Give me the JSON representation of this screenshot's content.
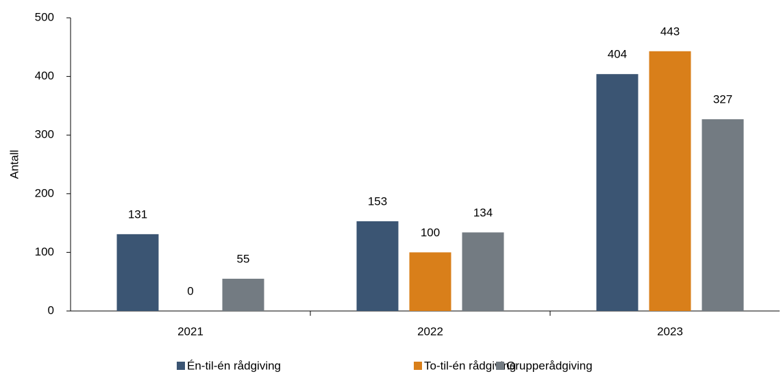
{
  "chart_data": {
    "type": "bar",
    "y_label": "Antall",
    "categories": [
      "2021",
      "2022",
      "2023"
    ],
    "series": [
      {
        "name": "Én-til-én rådgiving",
        "color": "#3b5573",
        "values": [
          131,
          153,
          404
        ]
      },
      {
        "name": "To-til-én rådgiving",
        "color": "#d97f1a",
        "values": [
          0,
          100,
          443
        ]
      },
      {
        "name": "Grupperådgiving",
        "color": "#737b82",
        "values": [
          55,
          134,
          327
        ]
      }
    ],
    "ylim": [
      0,
      500
    ],
    "yticks": [
      0,
      100,
      200,
      300,
      400,
      500
    ],
    "grid": false,
    "legend": "bottom"
  }
}
